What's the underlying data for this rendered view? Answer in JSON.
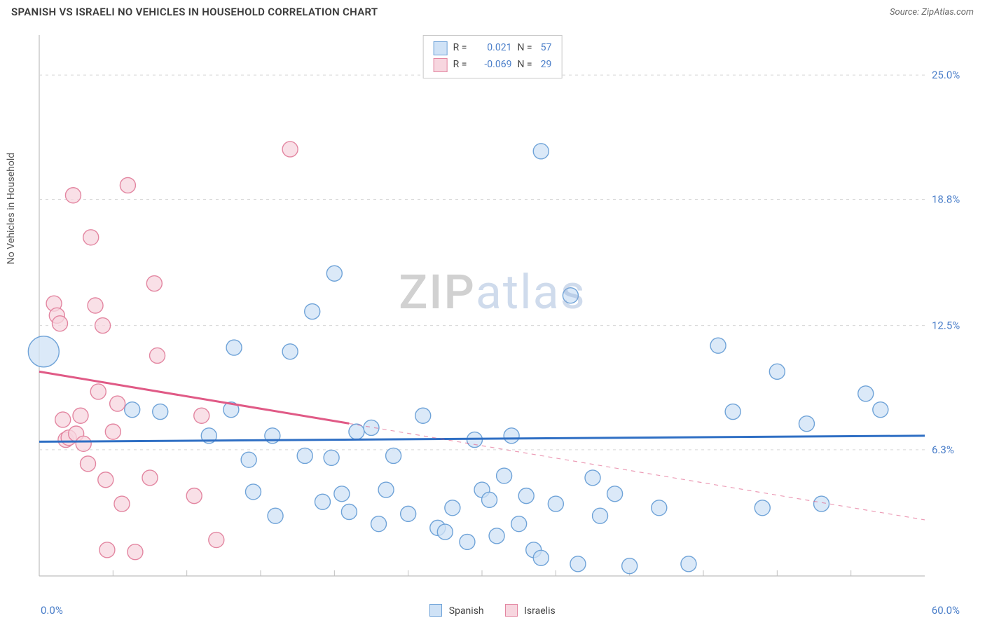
{
  "header": {
    "title": "SPANISH VS ISRAELI NO VEHICLES IN HOUSEHOLD CORRELATION CHART",
    "source_label": "Source: ZipAtlas.com"
  },
  "chart": {
    "type": "scatter",
    "ylabel": "No Vehicles in Household",
    "background_color": "#ffffff",
    "grid_color": "#d6d6d6",
    "axis_color": "#bfbfbf",
    "x_axis": {
      "min": 0.0,
      "max": 60.0,
      "min_label": "0.0%",
      "max_label": "60.0%",
      "tick_step": 5.0
    },
    "y_axis": {
      "min": 0.0,
      "max": 27.0,
      "ticks": [
        6.3,
        12.5,
        18.8,
        25.0
      ],
      "tick_labels": [
        "6.3%",
        "12.5%",
        "18.8%",
        "25.0%"
      ],
      "label_color": "#4a7ec9"
    },
    "series": [
      {
        "name": "Spanish",
        "marker_fill": "#cfe2f6",
        "marker_stroke": "#6fa3d8",
        "marker_radius": 11,
        "trend": {
          "solid_from_x": 0,
          "solid_to_x": 60,
          "y0": 6.7,
          "y1": 7.0,
          "color": "#2f6fc4",
          "width": 3
        },
        "points": [
          {
            "x": 0.3,
            "y": 11.2,
            "r": 22
          },
          {
            "x": 6.3,
            "y": 8.3
          },
          {
            "x": 8.2,
            "y": 8.2
          },
          {
            "x": 11.5,
            "y": 7.0
          },
          {
            "x": 13.0,
            "y": 8.3
          },
          {
            "x": 13.2,
            "y": 11.4
          },
          {
            "x": 14.2,
            "y": 5.8
          },
          {
            "x": 14.5,
            "y": 4.2
          },
          {
            "x": 15.8,
            "y": 7.0
          },
          {
            "x": 16.0,
            "y": 3.0
          },
          {
            "x": 17.0,
            "y": 11.2
          },
          {
            "x": 18.0,
            "y": 6.0
          },
          {
            "x": 18.5,
            "y": 13.2
          },
          {
            "x": 19.2,
            "y": 3.7
          },
          {
            "x": 19.8,
            "y": 5.9
          },
          {
            "x": 20.0,
            "y": 15.1
          },
          {
            "x": 20.5,
            "y": 4.1
          },
          {
            "x": 21.0,
            "y": 3.2
          },
          {
            "x": 21.5,
            "y": 7.2
          },
          {
            "x": 22.5,
            "y": 7.4
          },
          {
            "x": 23.0,
            "y": 2.6
          },
          {
            "x": 23.5,
            "y": 4.3
          },
          {
            "x": 24.0,
            "y": 6.0
          },
          {
            "x": 25.0,
            "y": 3.1
          },
          {
            "x": 26.0,
            "y": 8.0
          },
          {
            "x": 27.0,
            "y": 2.4
          },
          {
            "x": 27.5,
            "y": 2.2
          },
          {
            "x": 28.0,
            "y": 3.4
          },
          {
            "x": 29.0,
            "y": 1.7
          },
          {
            "x": 29.5,
            "y": 6.8
          },
          {
            "x": 30.0,
            "y": 4.3
          },
          {
            "x": 30.5,
            "y": 3.8
          },
          {
            "x": 31.0,
            "y": 2.0
          },
          {
            "x": 31.5,
            "y": 5.0
          },
          {
            "x": 32.0,
            "y": 7.0
          },
          {
            "x": 32.5,
            "y": 2.6
          },
          {
            "x": 33.0,
            "y": 4.0
          },
          {
            "x": 33.5,
            "y": 1.3
          },
          {
            "x": 34.0,
            "y": 21.2
          },
          {
            "x": 34.0,
            "y": 0.9
          },
          {
            "x": 35.0,
            "y": 3.6
          },
          {
            "x": 36.0,
            "y": 14.0
          },
          {
            "x": 36.5,
            "y": 0.6
          },
          {
            "x": 37.5,
            "y": 4.9
          },
          {
            "x": 38.0,
            "y": 3.0
          },
          {
            "x": 39.0,
            "y": 4.1
          },
          {
            "x": 40.0,
            "y": 0.5
          },
          {
            "x": 42.0,
            "y": 3.4
          },
          {
            "x": 44.0,
            "y": 0.6
          },
          {
            "x": 46.0,
            "y": 11.5
          },
          {
            "x": 47.0,
            "y": 8.2
          },
          {
            "x": 49.0,
            "y": 3.4
          },
          {
            "x": 50.0,
            "y": 10.2
          },
          {
            "x": 52.0,
            "y": 7.6
          },
          {
            "x": 53.0,
            "y": 3.6
          },
          {
            "x": 56.0,
            "y": 9.1
          },
          {
            "x": 57.0,
            "y": 8.3
          }
        ]
      },
      {
        "name": "Israelis",
        "marker_fill": "#f7d6df",
        "marker_stroke": "#e386a1",
        "marker_radius": 11,
        "trend": {
          "solid_from_x": 0,
          "solid_to_x": 21,
          "dashed_to_x": 60,
          "y0": 10.2,
          "y1": 2.8,
          "color": "#e05a86",
          "width": 3
        },
        "points": [
          {
            "x": 1.0,
            "y": 13.6
          },
          {
            "x": 1.2,
            "y": 13.0
          },
          {
            "x": 1.4,
            "y": 12.6
          },
          {
            "x": 1.6,
            "y": 7.8
          },
          {
            "x": 1.8,
            "y": 6.8
          },
          {
            "x": 2.0,
            "y": 6.9
          },
          {
            "x": 2.3,
            "y": 19.0
          },
          {
            "x": 2.5,
            "y": 7.1
          },
          {
            "x": 2.8,
            "y": 8.0
          },
          {
            "x": 3.0,
            "y": 6.6
          },
          {
            "x": 3.3,
            "y": 5.6
          },
          {
            "x": 3.5,
            "y": 16.9
          },
          {
            "x": 3.8,
            "y": 13.5
          },
          {
            "x": 4.0,
            "y": 9.2
          },
          {
            "x": 4.3,
            "y": 12.5
          },
          {
            "x": 4.5,
            "y": 4.8
          },
          {
            "x": 4.6,
            "y": 1.3
          },
          {
            "x": 5.0,
            "y": 7.2
          },
          {
            "x": 5.3,
            "y": 8.6
          },
          {
            "x": 5.6,
            "y": 3.6
          },
          {
            "x": 6.0,
            "y": 19.5
          },
          {
            "x": 6.5,
            "y": 1.2
          },
          {
            "x": 7.5,
            "y": 4.9
          },
          {
            "x": 7.8,
            "y": 14.6
          },
          {
            "x": 8.0,
            "y": 11.0
          },
          {
            "x": 10.5,
            "y": 4.0
          },
          {
            "x": 11.0,
            "y": 8.0
          },
          {
            "x": 12.0,
            "y": 1.8
          },
          {
            "x": 17.0,
            "y": 21.3
          }
        ]
      }
    ],
    "stats_box": {
      "rows": [
        {
          "swatch_fill": "#cfe2f6",
          "swatch_stroke": "#6fa3d8",
          "r_label": "R =",
          "r_value": "0.021",
          "n_label": "N =",
          "n_value": "57"
        },
        {
          "swatch_fill": "#f7d6df",
          "swatch_stroke": "#e386a1",
          "r_label": "R =",
          "r_value": "-0.069",
          "n_label": "N =",
          "n_value": "29"
        }
      ]
    },
    "bottom_legend": [
      {
        "label": "Spanish",
        "swatch_fill": "#cfe2f6",
        "swatch_stroke": "#6fa3d8"
      },
      {
        "label": "Israelis",
        "swatch_fill": "#f7d6df",
        "swatch_stroke": "#e386a1"
      }
    ],
    "watermark": {
      "part1": "ZIP",
      "part2": "atlas"
    }
  }
}
